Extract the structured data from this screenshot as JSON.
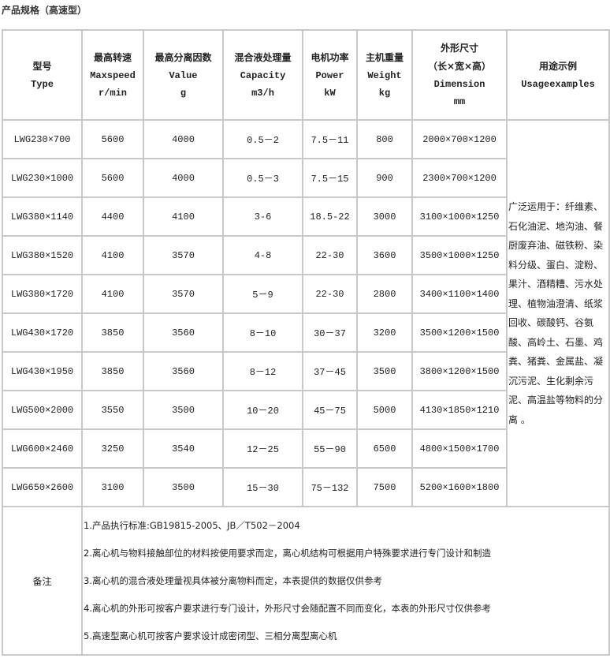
{
  "title": "产品规格（高速型）",
  "headers": [
    {
      "cn": "型号",
      "en": "Type",
      "unit": ""
    },
    {
      "cn": "最高转速",
      "en": "Maxspeed",
      "unit": "r/min"
    },
    {
      "cn": "最高分离因数",
      "en": "Value",
      "unit": "g"
    },
    {
      "cn": "混合液处理量",
      "en": "Capacity",
      "unit": "m3/h"
    },
    {
      "cn": "电机功率",
      "en": "Power",
      "unit": "kW"
    },
    {
      "cn": "主机重量",
      "en": "Weight",
      "unit": "kg"
    },
    {
      "cn": "外形尺寸",
      "cn2": "（长×宽×高）",
      "en": "Dimension",
      "unit": "mm"
    },
    {
      "cn": "用途示例",
      "en": "Usageexamples",
      "unit": ""
    }
  ],
  "rows": [
    [
      "LWG230×700",
      "5600",
      "4000",
      "0.5－2",
      "7.5－11",
      "800",
      "2000×700×1200"
    ],
    [
      "LWG230×1000",
      "5600",
      "4000",
      "0.5－3",
      "7.5－15",
      "900",
      "2300×700×1200"
    ],
    [
      "LWG380×1140",
      "4400",
      "4100",
      "3-6",
      "18.5-22",
      "3000",
      "3100×1000×1250"
    ],
    [
      "LWG380×1520",
      "4100",
      "3570",
      "4-8",
      "22-30",
      "3600",
      "3500×1000×1250"
    ],
    [
      "LWG380×1720",
      "4100",
      "3570",
      "5－9",
      "22-30",
      "2800",
      "3400×1100×1400"
    ],
    [
      "LWG430×1720",
      "3850",
      "3560",
      "8－10",
      "30－37",
      "3200",
      "3500×1200×1500"
    ],
    [
      "LWG430×1950",
      "3850",
      "3560",
      "8－12",
      "37－45",
      "3500",
      "3800×1200×1500"
    ],
    [
      "LWG500×2000",
      "3550",
      "3500",
      "10－20",
      "45－75",
      "5000",
      "4130×1850×1210"
    ],
    [
      "LWG600×2460",
      "3250",
      "3540",
      "12－25",
      "55－90",
      "6500",
      "4800×1500×1700"
    ],
    [
      "LWG650×2600",
      "3100",
      "3500",
      "15－30",
      "75－132",
      "7500",
      "5200×1600×1800"
    ]
  ],
  "usage": "广泛运用于：纤维素、石化油泥、地沟油、餐厨废弃油、磁铁粉、染料分级、蛋白、淀粉、果汁、酒精糟、污水处理、植物油澄清、纸浆回收、碳酸钙、谷氨酸、高岭土、石墨、鸡粪、猪粪、金属盐、凝沉污泥、生化剩余污泥、高温盐等物料的分离 。",
  "notes_label": "备注",
  "notes": [
    "1.产品执行标准:GB19815-2005、JB／T502－2004",
    "2.离心机与物料接触部位的材料按使用要求而定，离心机结构可根据用户特殊要求进行专门设计和制造",
    "3.离心机的混合液处理量视具体被分离物料而定，本表提供的数据仅供参考",
    "4.离心机的外形可按客户要求进行专门设计，外形尺寸会随配置不同而变化，本表的外形尺寸仅供参考",
    "5.高速型离心机可按客户要求设计成密闭型、三相分离型离心机"
  ]
}
